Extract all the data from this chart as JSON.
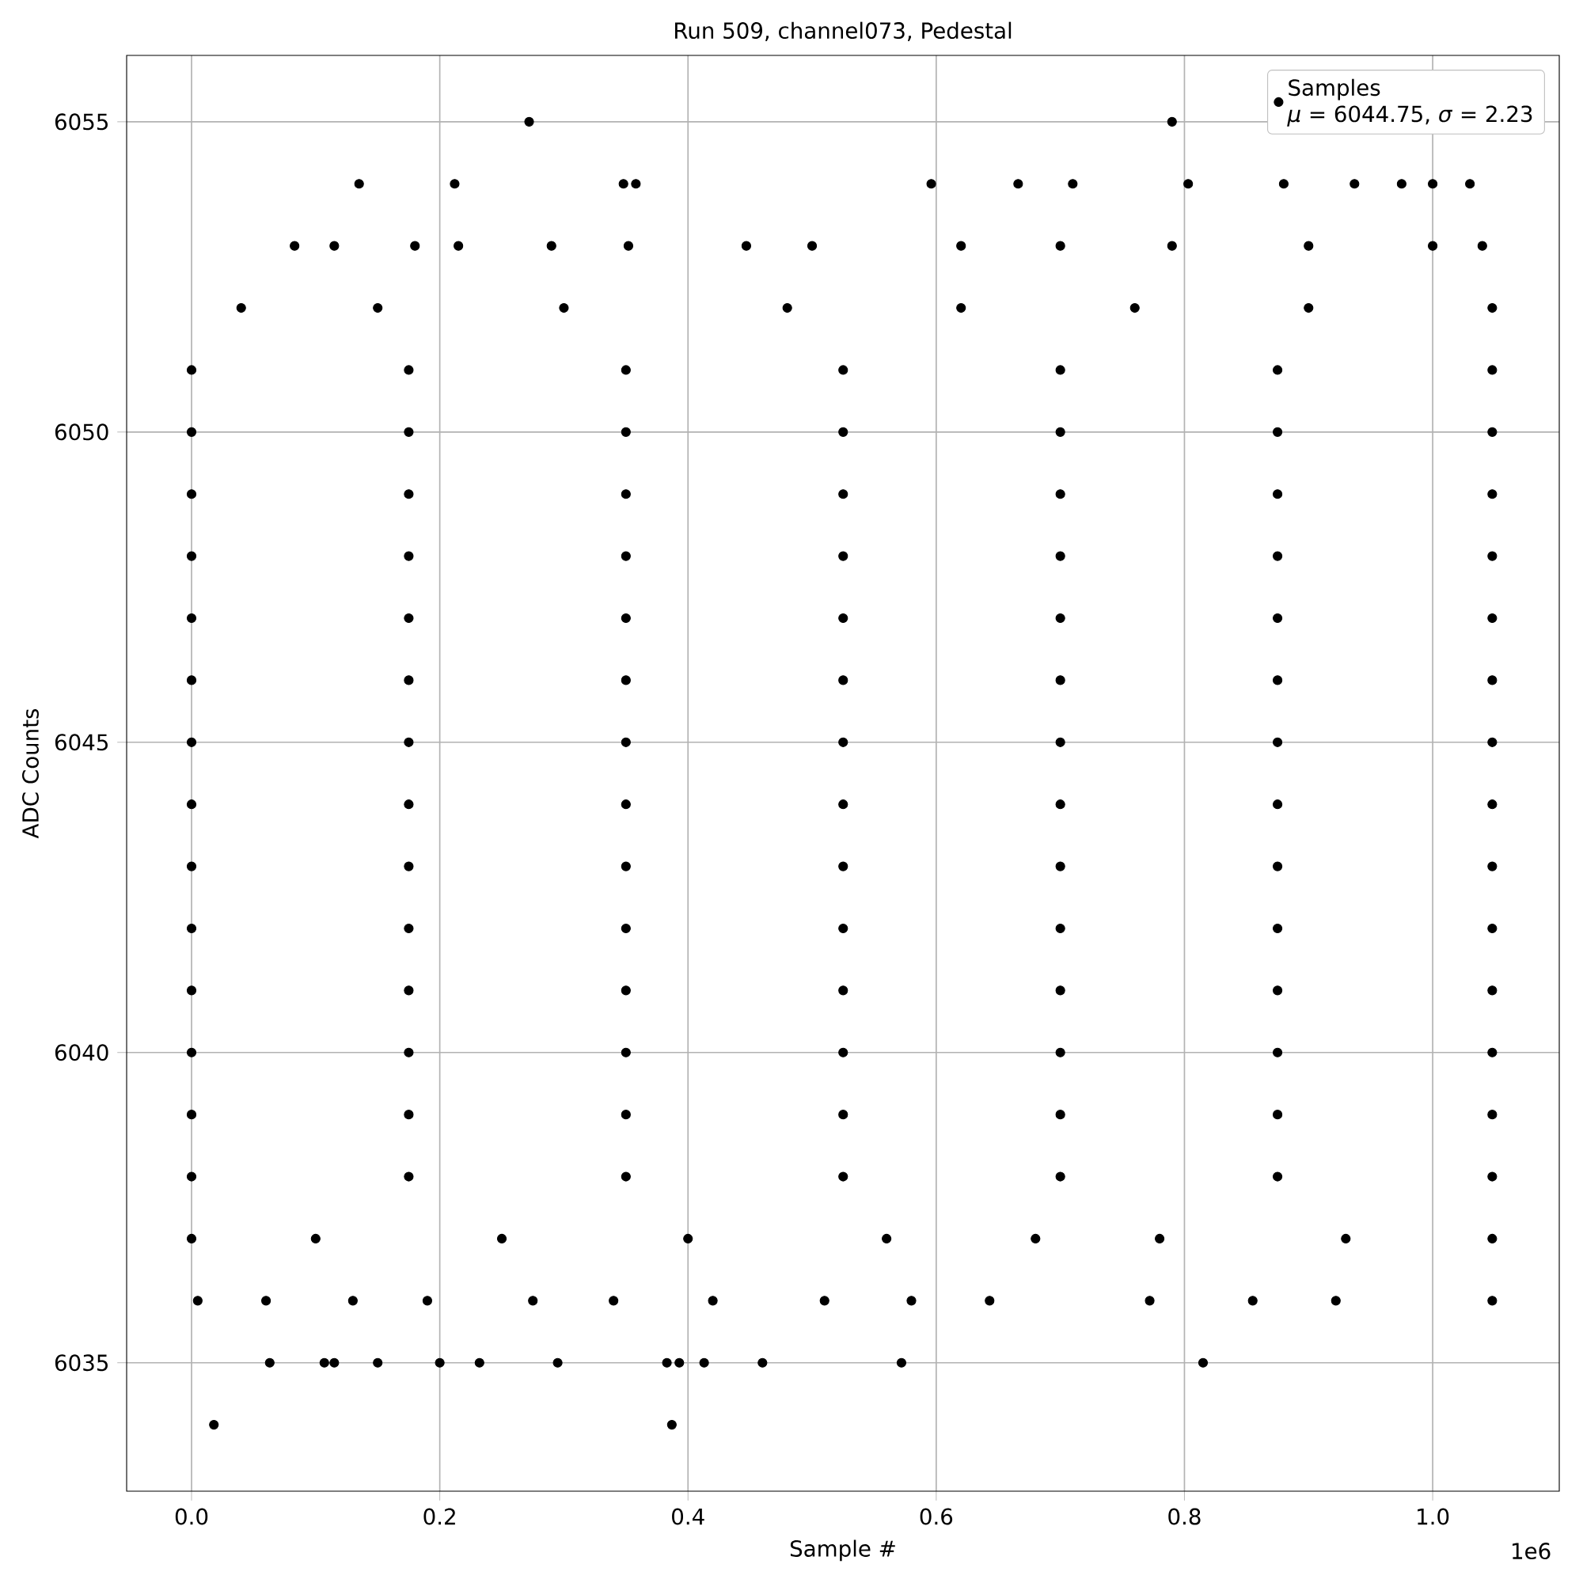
{
  "chart_data": {
    "type": "scatter",
    "title": "Run 509, channel073, Pedestal",
    "xlabel": "Sample #",
    "ylabel": "ADC Counts",
    "annotations": [
      "*μ* = 6044.75, *σ* = 2.23",
      "1e6"
    ],
    "xlim": [
      -0.0523,
      1.102
    ],
    "ylim": [
      6032.93,
      6056.07
    ],
    "xticks": [
      {
        "value": 0,
        "label": "0.0"
      },
      0.2,
      0.4,
      0.6,
      0.8,
      {
        "value": 1,
        "label": "1.0"
      }
    ],
    "yticks": [
      6035,
      6040,
      6045,
      6050,
      6055
    ],
    "grid": true,
    "legend": "top right",
    "series": [
      {
        "name": "Samples",
        "color": "#000000",
        "x": [
          0,
          0.175,
          0.35,
          0.525,
          0.7,
          0.875,
          1.048,
          0,
          0.175,
          0.35,
          0.525,
          0.7,
          0.875,
          1.048,
          0,
          0.175,
          0.35,
          0.525,
          0.7,
          0.875,
          1.048,
          0,
          0.175,
          0.35,
          0.525,
          0.7,
          0.875,
          1.048,
          0,
          0.175,
          0.35,
          0.525,
          0.7,
          0.875,
          1.048,
          0,
          0.175,
          0.35,
          0.525,
          0.7,
          0.875,
          1.048,
          0,
          0.175,
          0.35,
          0.525,
          0.7,
          0.875,
          1.048,
          0,
          0.175,
          0.35,
          0.525,
          0.7,
          0.875,
          1.048,
          0,
          0.175,
          0.35,
          0.525,
          0.7,
          0.875,
          1.048,
          0,
          0.175,
          0.35,
          0.525,
          0.7,
          0.875,
          1.048,
          0,
          0.175,
          0.35,
          0.525,
          0.7,
          0.875,
          1.048,
          0,
          0.175,
          0.35,
          0.525,
          0.7,
          0.875,
          1.048,
          0,
          0.175,
          0.35,
          0.525,
          0.7,
          0.875,
          1.048,
          0,
          0.175,
          0.35,
          0.525,
          0.7,
          0.875,
          1.048,
          0,
          0.1,
          0.25,
          0.4,
          0.56,
          0.68,
          0.78,
          0.93,
          1.048,
          0.04,
          0.15,
          0.3,
          0.48,
          0.62,
          0.76,
          0.9,
          1.048,
          0.083,
          0.115,
          0.18,
          0.215,
          0.29,
          0.352,
          0.447,
          0.5,
          0.62,
          0.7,
          0.79,
          0.9,
          1.0,
          1.04,
          0.005,
          0.06,
          0.13,
          0.19,
          0.275,
          0.34,
          0.42,
          0.51,
          0.58,
          0.643,
          0.772,
          0.855,
          0.922,
          1.048,
          0.063,
          0.107,
          0.115,
          0.15,
          0.2,
          0.232,
          0.295,
          0.383,
          0.393,
          0.413,
          0.46,
          0.572,
          0.815,
          0.018,
          0.387,
          0.135,
          0.212,
          0.348,
          0.358,
          0.596,
          0.666,
          0.71,
          0.803,
          0.88,
          0.937,
          0.975,
          1.0,
          1.03,
          0.272,
          0.79
        ],
        "values": [
          6038,
          6038,
          6038,
          6038,
          6038,
          6038,
          6038,
          6039,
          6039,
          6039,
          6039,
          6039,
          6039,
          6039,
          6040,
          6040,
          6040,
          6040,
          6040,
          6040,
          6040,
          6041,
          6041,
          6041,
          6041,
          6041,
          6041,
          6041,
          6042,
          6042,
          6042,
          6042,
          6042,
          6042,
          6042,
          6043,
          6043,
          6043,
          6043,
          6043,
          6043,
          6043,
          6044,
          6044,
          6044,
          6044,
          6044,
          6044,
          6044,
          6045,
          6045,
          6045,
          6045,
          6045,
          6045,
          6045,
          6046,
          6046,
          6046,
          6046,
          6046,
          6046,
          6046,
          6047,
          6047,
          6047,
          6047,
          6047,
          6047,
          6047,
          6048,
          6048,
          6048,
          6048,
          6048,
          6048,
          6048,
          6049,
          6049,
          6049,
          6049,
          6049,
          6049,
          6049,
          6050,
          6050,
          6050,
          6050,
          6050,
          6050,
          6050,
          6051,
          6051,
          6051,
          6051,
          6051,
          6051,
          6051,
          6037,
          6037,
          6037,
          6037,
          6037,
          6037,
          6037,
          6037,
          6037,
          6052,
          6052,
          6052,
          6052,
          6052,
          6052,
          6052,
          6052,
          6053,
          6053,
          6053,
          6053,
          6053,
          6053,
          6053,
          6053,
          6053,
          6053,
          6053,
          6053,
          6053,
          6053,
          6036,
          6036,
          6036,
          6036,
          6036,
          6036,
          6036,
          6036,
          6036,
          6036,
          6036,
          6036,
          6036,
          6036,
          6035,
          6035,
          6035,
          6035,
          6035,
          6035,
          6035,
          6035,
          6035,
          6035,
          6035,
          6035,
          6035,
          6034,
          6034,
          6054,
          6054,
          6054,
          6054,
          6054,
          6054,
          6054,
          6054,
          6054,
          6054,
          6054,
          6054,
          6054,
          6055,
          6055
        ]
      }
    ]
  }
}
